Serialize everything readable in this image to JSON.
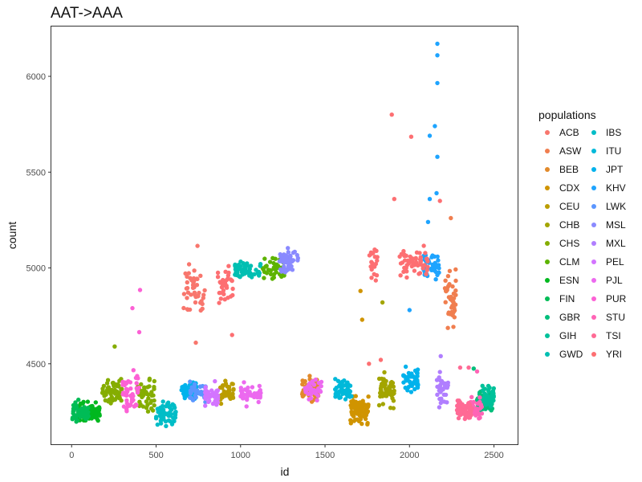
{
  "chart_data": {
    "type": "scatter",
    "title": "AAT->AAA",
    "xlabel": "id",
    "ylabel": "count",
    "xlim": [
      -120,
      2640
    ],
    "ylim": [
      4080,
      6260
    ],
    "x_ticks": [
      0,
      500,
      1000,
      1500,
      2000,
      2500
    ],
    "y_ticks": [
      4500,
      5000,
      5500,
      6000
    ],
    "grid": false,
    "legend": {
      "title": "populations",
      "position": "right",
      "columns": 2
    },
    "series": [
      {
        "name": "ACB",
        "color": "#F8766D",
        "clusters": [
          {
            "x": [
              650,
              790
            ],
            "mean": 4880,
            "spread": 110,
            "n": 45
          }
        ]
      },
      {
        "name": "ASW",
        "color": "#F07E4F",
        "clusters": [
          {
            "x": [
              2210,
              2275
            ],
            "mean": 4840,
            "spread": 120,
            "n": 45
          }
        ]
      },
      {
        "name": "BEB",
        "color": "#E28A2B",
        "clusters": [
          {
            "x": [
              1365,
              1460
            ],
            "mean": 4365,
            "spread": 55,
            "n": 60
          }
        ]
      },
      {
        "name": "CDX",
        "color": "#D09400",
        "clusters": [
          {
            "x": [
              1650,
              1760
            ],
            "mean": 4260,
            "spread": 60,
            "n": 80
          }
        ]
      },
      {
        "name": "CEU",
        "color": "#BB9D00",
        "clusters": [
          {
            "x": [
              880,
              960
            ],
            "mean": 4360,
            "spread": 55,
            "n": 40
          }
        ]
      },
      {
        "name": "CHB",
        "color": "#A3A500",
        "clusters": [
          {
            "x": [
              1820,
              1910
            ],
            "mean": 4360,
            "spread": 65,
            "n": 55
          }
        ]
      },
      {
        "name": "CHS",
        "color": "#85AD00",
        "clusters": [
          {
            "x": [
              180,
              300
            ],
            "mean": 4360,
            "spread": 60,
            "n": 60
          },
          {
            "x": [
              390,
              490
            ],
            "mean": 4340,
            "spread": 75,
            "n": 50
          }
        ]
      },
      {
        "name": "CLM",
        "color": "#5DB300",
        "clusters": [
          {
            "x": [
              1130,
              1260
            ],
            "mean": 4990,
            "spread": 50,
            "n": 50
          }
        ]
      },
      {
        "name": "ESN",
        "color": "#00B81F",
        "clusters": [
          {
            "x": [
              40,
              170
            ],
            "mean": 4240,
            "spread": 45,
            "n": 80
          }
        ]
      },
      {
        "name": "FIN",
        "color": "#00BC56",
        "clusters": [
          {
            "x": [
              0,
              100
            ],
            "mean": 4250,
            "spread": 45,
            "n": 60
          }
        ]
      },
      {
        "name": "GBR",
        "color": "#00BE7B",
        "clusters": [
          {
            "x": [
              2400,
              2490
            ],
            "mean": 4300,
            "spread": 45,
            "n": 60
          }
        ]
      },
      {
        "name": "GIH",
        "color": "#00C19A",
        "clusters": [
          {
            "x": [
              2430,
              2500
            ],
            "mean": 4330,
            "spread": 40,
            "n": 45
          }
        ]
      },
      {
        "name": "GWD",
        "color": "#00BFB2",
        "clusters": [
          {
            "x": [
              960,
              1120
            ],
            "mean": 4990,
            "spread": 35,
            "n": 55
          }
        ]
      },
      {
        "name": "IBS",
        "color": "#00BDC7",
        "clusters": [
          {
            "x": [
              500,
              620
            ],
            "mean": 4240,
            "spread": 50,
            "n": 55
          }
        ]
      },
      {
        "name": "ITU",
        "color": "#00B9DA",
        "clusters": [
          {
            "x": [
              1560,
              1660
            ],
            "mean": 4370,
            "spread": 50,
            "n": 55
          }
        ]
      },
      {
        "name": "JPT",
        "color": "#00B2EC",
        "clusters": [
          {
            "x": [
              650,
              740
            ],
            "mean": 4360,
            "spread": 45,
            "n": 55
          },
          {
            "x": [
              1960,
              2050
            ],
            "mean": 4420,
            "spread": 60,
            "n": 50
          }
        ]
      },
      {
        "name": "KHV",
        "color": "#1EA4FF",
        "clusters": [
          {
            "x": [
              2080,
              2180
            ],
            "mean": 5010,
            "spread": 60,
            "n": 45
          }
        ]
      },
      {
        "name": "LWK",
        "color": "#5B96FF",
        "clusters": [
          {
            "x": [
              700,
              800
            ],
            "mean": 4350,
            "spread": 45,
            "n": 40
          }
        ]
      },
      {
        "name": "MSL",
        "color": "#8A8AFF",
        "clusters": [
          {
            "x": [
              1230,
              1340
            ],
            "mean": 5040,
            "spread": 55,
            "n": 50
          }
        ]
      },
      {
        "name": "MXL",
        "color": "#B07EFF",
        "clusters": [
          {
            "x": [
              2160,
              2230
            ],
            "mean": 4360,
            "spread": 60,
            "n": 45
          }
        ]
      },
      {
        "name": "PEL",
        "color": "#D374FF",
        "clusters": [
          {
            "x": [
              790,
              870
            ],
            "mean": 4340,
            "spread": 45,
            "n": 40
          }
        ]
      },
      {
        "name": "PJL",
        "color": "#EC69EF",
        "clusters": [
          {
            "x": [
              1000,
              1120
            ],
            "mean": 4340,
            "spread": 45,
            "n": 40
          },
          {
            "x": [
              1380,
              1480
            ],
            "mean": 4360,
            "spread": 50,
            "n": 35
          }
        ]
      },
      {
        "name": "PUR",
        "color": "#FC61D5",
        "clusters": [
          {
            "x": [
              300,
              400
            ],
            "mean": 4360,
            "spread": 80,
            "n": 50
          }
        ]
      },
      {
        "name": "STU",
        "color": "#FF64B6",
        "clusters": [
          {
            "x": [
              2350,
              2430
            ],
            "mean": 4280,
            "spread": 50,
            "n": 40
          }
        ]
      },
      {
        "name": "TSI",
        "color": "#FF6A95",
        "clusters": [
          {
            "x": [
              2280,
              2370
            ],
            "mean": 4260,
            "spread": 45,
            "n": 55
          }
        ]
      },
      {
        "name": "YRI",
        "color": "#FD6F72",
        "clusters": [
          {
            "x": [
              860,
              960
            ],
            "mean": 4900,
            "spread": 100,
            "n": 35
          },
          {
            "x": [
              1940,
              2110
            ],
            "mean": 5020,
            "spread": 70,
            "n": 55
          },
          {
            "x": [
              1760,
              1810
            ],
            "mean": 5010,
            "spread": 80,
            "n": 20
          }
        ]
      }
    ],
    "outliers": [
      {
        "series": "YRI",
        "x": 1895,
        "y": 5800
      },
      {
        "series": "YRI",
        "x": 2010,
        "y": 5685
      },
      {
        "series": "YRI",
        "x": 2180,
        "y": 5350
      },
      {
        "series": "YRI",
        "x": 1910,
        "y": 5360
      },
      {
        "series": "ASW",
        "x": 2245,
        "y": 5260
      },
      {
        "series": "KHV",
        "x": 2165,
        "y": 6170
      },
      {
        "series": "KHV",
        "x": 2165,
        "y": 6110
      },
      {
        "series": "KHV",
        "x": 2165,
        "y": 5965
      },
      {
        "series": "KHV",
        "x": 2150,
        "y": 5740
      },
      {
        "series": "KHV",
        "x": 2165,
        "y": 5580
      },
      {
        "series": "KHV",
        "x": 2120,
        "y": 5690
      },
      {
        "series": "KHV",
        "x": 2160,
        "y": 5390
      },
      {
        "series": "KHV",
        "x": 2120,
        "y": 5360
      },
      {
        "series": "KHV",
        "x": 2110,
        "y": 5240
      },
      {
        "series": "PUR",
        "x": 405,
        "y": 4885
      },
      {
        "series": "PUR",
        "x": 360,
        "y": 4790
      },
      {
        "series": "PUR",
        "x": 400,
        "y": 4665
      },
      {
        "series": "ACB",
        "x": 745,
        "y": 5115
      },
      {
        "series": "ACB",
        "x": 735,
        "y": 4610
      },
      {
        "series": "YRI",
        "x": 950,
        "y": 4650
      },
      {
        "series": "YRI",
        "x": 1830,
        "y": 4520
      },
      {
        "series": "YRI",
        "x": 1760,
        "y": 4500
      },
      {
        "series": "CHB",
        "x": 1840,
        "y": 4820
      },
      {
        "series": "CDX",
        "x": 1710,
        "y": 4880
      },
      {
        "series": "CDX",
        "x": 1720,
        "y": 4730
      },
      {
        "series": "CHS",
        "x": 255,
        "y": 4590
      },
      {
        "series": "KHV",
        "x": 2000,
        "y": 4780
      },
      {
        "series": "MXL",
        "x": 2185,
        "y": 4540
      },
      {
        "series": "TSI",
        "x": 2350,
        "y": 4480
      },
      {
        "series": "GBR",
        "x": 2380,
        "y": 4475
      },
      {
        "series": "STU",
        "x": 2400,
        "y": 4460
      },
      {
        "series": "TSI",
        "x": 2300,
        "y": 4480
      }
    ]
  }
}
